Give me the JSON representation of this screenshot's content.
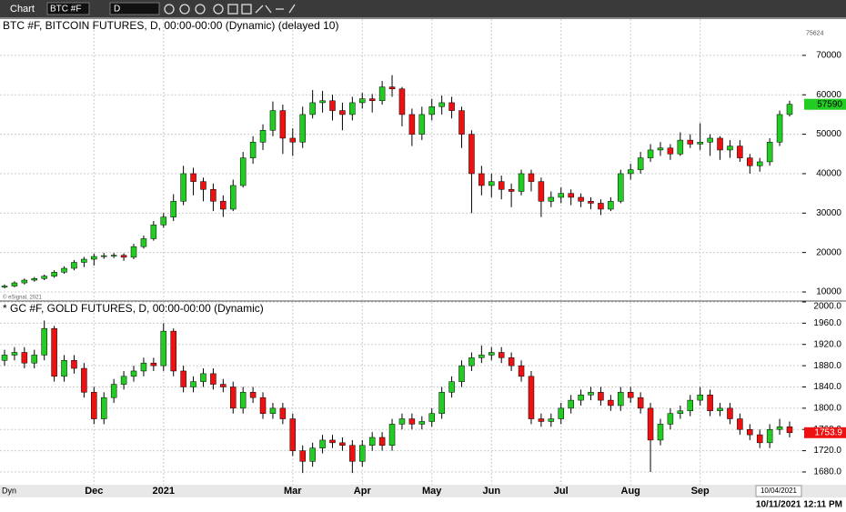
{
  "toolbar": {
    "title": "Chart",
    "symbol": "BTC #F",
    "interval": "D"
  },
  "chart_data": [
    {
      "type": "candlestick",
      "title": "BTC #F, BITCOIN FUTURES, D, 00:00-00:00 (Dynamic) (delayed 10)",
      "watermark": "© eSignal, 2021",
      "open": [
        11200,
        11500,
        12300,
        13000,
        13400,
        14000,
        15000,
        16000,
        17500,
        18300,
        19000,
        19200,
        19300,
        18800,
        21500,
        23500,
        27000,
        29000,
        33000,
        40000,
        38000,
        36000,
        33000,
        31000,
        37000,
        44000,
        48000,
        51000,
        56000,
        49000,
        48000,
        55000,
        58000,
        58500,
        56000,
        55000,
        58000,
        59000,
        58500,
        62000,
        61500,
        55000,
        50000,
        55000,
        57000,
        58000,
        56000,
        50000,
        40000,
        37000,
        38000,
        36000,
        35500,
        40000,
        38000,
        33000,
        34000,
        35000,
        34000,
        33000,
        32500,
        31000,
        33000,
        40000,
        41000,
        44000,
        46000,
        46500,
        45000,
        48500,
        47500,
        48000,
        49000,
        46000,
        47000,
        44000,
        42000,
        43000,
        48000,
        55000
      ],
      "high": [
        11900,
        12700,
        13400,
        13800,
        14400,
        15500,
        16500,
        18100,
        18900,
        19700,
        19900,
        19900,
        19800,
        22200,
        24300,
        28000,
        30000,
        34800,
        42000,
        41500,
        39000,
        37500,
        34500,
        38500,
        45500,
        49500,
        52500,
        58300,
        57500,
        51500,
        57000,
        61200,
        61000,
        60000,
        58000,
        59500,
        60500,
        60200,
        63500,
        65000,
        62000,
        56500,
        57000,
        59000,
        59800,
        59500,
        57000,
        51000,
        42000,
        40000,
        39500,
        37500,
        41000,
        41000,
        39000,
        35500,
        36500,
        36000,
        35000,
        34000,
        33500,
        34000,
        41000,
        42500,
        45500,
        47500,
        48000,
        47500,
        50500,
        50000,
        52800,
        50000,
        49500,
        48500,
        48500,
        45000,
        44000,
        49000,
        56000,
        58500
      ],
      "low": [
        10900,
        11200,
        11900,
        12600,
        13000,
        13600,
        14600,
        15500,
        16300,
        16700,
        18400,
        18600,
        17900,
        18300,
        21000,
        23000,
        26300,
        28000,
        32000,
        34500,
        33000,
        30500,
        29000,
        30500,
        36500,
        42500,
        46000,
        49500,
        45000,
        44500,
        46500,
        54000,
        55500,
        53500,
        51000,
        53500,
        56500,
        55500,
        57500,
        59500,
        52000,
        47000,
        48500,
        53500,
        55000,
        54000,
        46500,
        30000,
        34500,
        34000,
        33500,
        31500,
        34500,
        35500,
        29000,
        31500,
        32500,
        32000,
        31500,
        31000,
        29500,
        30500,
        32500,
        38500,
        40000,
        43000,
        44500,
        43500,
        44500,
        46500,
        46000,
        44500,
        43500,
        44000,
        43000,
        40000,
        40500,
        42000,
        47000,
        54500
      ],
      "close": [
        11500,
        12300,
        13000,
        13400,
        14000,
        15000,
        16000,
        17500,
        18300,
        19000,
        19200,
        19300,
        18800,
        21500,
        23500,
        27000,
        29000,
        33000,
        40000,
        38000,
        36000,
        33000,
        31000,
        37000,
        44000,
        48000,
        51000,
        56000,
        49000,
        48000,
        55000,
        58000,
        58500,
        56000,
        55000,
        58000,
        59000,
        58500,
        62000,
        61500,
        55000,
        50000,
        55000,
        57000,
        58000,
        56000,
        50000,
        40000,
        37000,
        38000,
        36000,
        35500,
        40000,
        38000,
        33000,
        34000,
        35000,
        34000,
        33000,
        32500,
        31000,
        33000,
        40000,
        41000,
        44000,
        46000,
        46500,
        45000,
        48500,
        47500,
        48000,
        49000,
        46000,
        47000,
        44000,
        42000,
        43000,
        48000,
        55000,
        57590
      ],
      "up_color": "#22cc22",
      "down_color": "#ee1111",
      "ylim": [
        7930,
        79200
      ],
      "yticks": [
        10000,
        20000,
        30000,
        40000,
        50000,
        60000,
        70000
      ],
      "last_value": 57590,
      "marker_value": 75624,
      "grid": true
    },
    {
      "type": "candlestick",
      "title": "* GC #F, GOLD FUTURES, D, 00:00-00:00 (Dynamic)",
      "categories": [
        null,
        null,
        null,
        null,
        null,
        null,
        null,
        null,
        null,
        "Dec",
        null,
        null,
        null,
        null,
        null,
        null,
        "2021",
        null,
        null,
        null,
        null,
        null,
        null,
        null,
        null,
        null,
        null,
        null,
        null,
        "Mar",
        null,
        null,
        null,
        null,
        null,
        null,
        "Apr",
        null,
        null,
        null,
        null,
        null,
        null,
        "May",
        null,
        null,
        null,
        null,
        null,
        "Jun",
        null,
        null,
        null,
        null,
        null,
        null,
        "Jul",
        null,
        null,
        null,
        null,
        null,
        null,
        "Aug",
        null,
        null,
        null,
        null,
        null,
        null,
        "Sep",
        null,
        null,
        null,
        null,
        null,
        null,
        null,
        null,
        null
      ],
      "open": [
        1890,
        1900,
        1905,
        1885,
        1900,
        1950,
        1860,
        1890,
        1875,
        1830,
        1780,
        1820,
        1845,
        1860,
        1870,
        1885,
        1880,
        1945,
        1870,
        1840,
        1850,
        1865,
        1845,
        1840,
        1800,
        1830,
        1820,
        1790,
        1800,
        1780,
        1720,
        1700,
        1725,
        1740,
        1735,
        1730,
        1700,
        1730,
        1745,
        1730,
        1770,
        1780,
        1770,
        1775,
        1790,
        1830,
        1850,
        1880,
        1895,
        1900,
        1905,
        1895,
        1880,
        1860,
        1780,
        1775,
        1780,
        1800,
        1815,
        1825,
        1830,
        1815,
        1805,
        1830,
        1820,
        1800,
        1740,
        1770,
        1790,
        1795,
        1815,
        1825,
        1795,
        1800,
        1780,
        1760,
        1750,
        1735,
        1760,
        1765
      ],
      "high": [
        1910,
        1915,
        1915,
        1910,
        1965,
        1955,
        1900,
        1900,
        1885,
        1840,
        1830,
        1855,
        1870,
        1880,
        1895,
        1895,
        1960,
        1950,
        1880,
        1860,
        1875,
        1875,
        1855,
        1850,
        1840,
        1840,
        1830,
        1810,
        1810,
        1790,
        1730,
        1735,
        1750,
        1750,
        1745,
        1740,
        1740,
        1755,
        1755,
        1780,
        1790,
        1790,
        1785,
        1800,
        1840,
        1860,
        1890,
        1905,
        1918,
        1915,
        1915,
        1905,
        1890,
        1870,
        1790,
        1790,
        1810,
        1825,
        1835,
        1840,
        1840,
        1825,
        1840,
        1840,
        1830,
        1810,
        1780,
        1800,
        1805,
        1825,
        1840,
        1835,
        1810,
        1810,
        1790,
        1770,
        1760,
        1770,
        1780,
        1775
      ],
      "low": [
        1880,
        1890,
        1875,
        1875,
        1890,
        1850,
        1850,
        1865,
        1820,
        1770,
        1770,
        1810,
        1835,
        1850,
        1860,
        1870,
        1870,
        1860,
        1830,
        1830,
        1840,
        1835,
        1830,
        1790,
        1790,
        1810,
        1780,
        1780,
        1770,
        1710,
        1678,
        1690,
        1715,
        1725,
        1720,
        1678,
        1690,
        1720,
        1720,
        1720,
        1760,
        1760,
        1760,
        1765,
        1780,
        1820,
        1840,
        1870,
        1885,
        1890,
        1885,
        1870,
        1850,
        1770,
        1765,
        1765,
        1770,
        1790,
        1805,
        1815,
        1805,
        1795,
        1795,
        1810,
        1790,
        1680,
        1730,
        1760,
        1780,
        1785,
        1805,
        1785,
        1785,
        1770,
        1750,
        1740,
        1725,
        1725,
        1750,
        1745
      ],
      "close": [
        1900,
        1905,
        1885,
        1900,
        1950,
        1860,
        1890,
        1875,
        1830,
        1780,
        1820,
        1845,
        1860,
        1870,
        1885,
        1880,
        1945,
        1870,
        1840,
        1850,
        1865,
        1845,
        1840,
        1800,
        1830,
        1820,
        1790,
        1800,
        1780,
        1720,
        1700,
        1725,
        1740,
        1735,
        1730,
        1700,
        1730,
        1745,
        1730,
        1770,
        1780,
        1770,
        1775,
        1790,
        1830,
        1850,
        1880,
        1895,
        1900,
        1905,
        1895,
        1880,
        1860,
        1780,
        1775,
        1780,
        1800,
        1815,
        1825,
        1830,
        1815,
        1805,
        1830,
        1820,
        1800,
        1740,
        1770,
        1790,
        1795,
        1815,
        1825,
        1795,
        1800,
        1780,
        1760,
        1750,
        1735,
        1760,
        1765,
        1753.9
      ],
      "up_color": "#22cc22",
      "down_color": "#ee1111",
      "ylim": [
        1656,
        2000
      ],
      "yticks": [
        {
          "value": 1680,
          "label": "1680.0"
        },
        {
          "value": 1720,
          "label": "1720.0"
        },
        {
          "value": 1760,
          "label": "1760.0"
        },
        {
          "value": 1800,
          "label": "1800.0"
        },
        {
          "value": 1840,
          "label": "1840.0"
        },
        {
          "value": 1880,
          "label": "1880.0"
        },
        {
          "value": 1920,
          "label": "1920.0"
        },
        {
          "value": 1960,
          "label": "1960.0"
        },
        {
          "value": 2000,
          "label": "2000.0"
        }
      ],
      "last_value": 1753.9,
      "cursor_label": "10/04/2021",
      "grid": true
    }
  ],
  "status_bar": {
    "mode": "Dyn",
    "datetime": "10/11/2021 12:11 PM"
  }
}
